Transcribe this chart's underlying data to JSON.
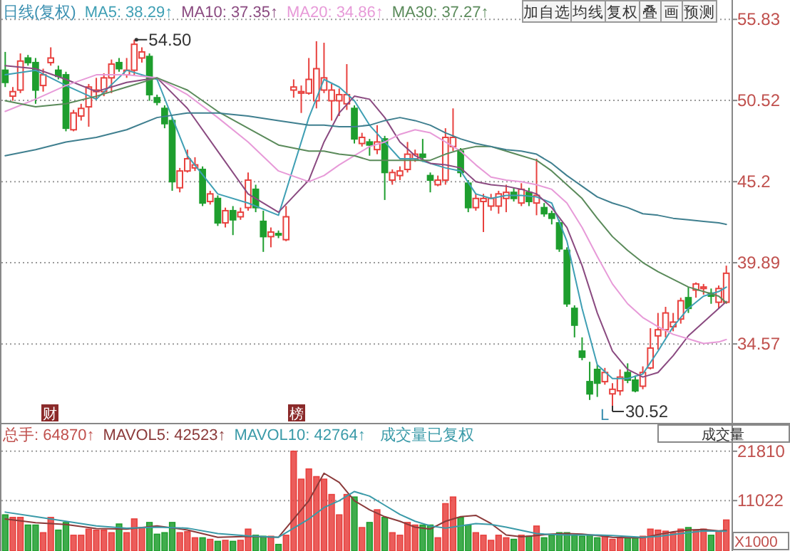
{
  "chart_data": [
    {
      "type": "candlestick",
      "title": "日线(复权)",
      "legend": "top left",
      "grid": "y",
      "ylim": [
        29.4,
        57.1
      ],
      "yticks": [
        55.83,
        50.52,
        45.2,
        39.89,
        34.57
      ],
      "categories": [
        null,
        null,
        null,
        null,
        null,
        null,
        null,
        null,
        null,
        null,
        null,
        null,
        null,
        null,
        null,
        null,
        null,
        null,
        null,
        null,
        null,
        null,
        null,
        null,
        null,
        null,
        null,
        null,
        null,
        null,
        null,
        null,
        null,
        null,
        null,
        null,
        null,
        null,
        null,
        null,
        null,
        null,
        null,
        null,
        null,
        null,
        null,
        null,
        null,
        null,
        null,
        null,
        null,
        null,
        null,
        null,
        null,
        null,
        null,
        null,
        null,
        null,
        null,
        null,
        null,
        null,
        null,
        null,
        null,
        null,
        null,
        null,
        null,
        null,
        null,
        null,
        null,
        null,
        null,
        null,
        null,
        null,
        null,
        null,
        null,
        null,
        null,
        null,
        null,
        null,
        null,
        null,
        null,
        null,
        null,
        null
      ],
      "ohlc": [
        [
          52.5,
          53.7,
          51.4,
          51.7
        ],
        [
          50.8,
          51.4,
          50.5,
          51.1
        ],
        [
          51.2,
          53.6,
          51.0,
          53.1
        ],
        [
          53.3,
          53.5,
          52.8,
          53.0
        ],
        [
          53.0,
          53.3,
          50.3,
          51.2
        ],
        [
          51.5,
          52.6,
          51.1,
          52.2
        ],
        [
          53.0,
          54.0,
          52.8,
          53.3
        ],
        [
          52.5,
          52.8,
          51.9,
          52.1
        ],
        [
          52.2,
          52.4,
          48.5,
          48.7
        ],
        [
          48.6,
          49.9,
          48.5,
          49.7
        ],
        [
          49.5,
          50.3,
          49.2,
          50.0
        ],
        [
          50.1,
          51.6,
          48.8,
          51.4
        ],
        [
          51.1,
          52.0,
          50.6,
          51.2
        ],
        [
          51.1,
          52.3,
          50.8,
          52.0
        ],
        [
          52.0,
          53.2,
          51.0,
          52.9
        ],
        [
          53.0,
          53.3,
          52.4,
          52.6
        ],
        [
          52.2,
          53.3,
          52.0,
          52.5
        ],
        [
          52.5,
          54.5,
          52.2,
          54.2
        ],
        [
          53.3,
          54.0,
          53.0,
          53.7
        ],
        [
          53.4,
          53.6,
          50.5,
          50.9
        ],
        [
          50.7,
          50.9,
          50.2,
          50.4
        ],
        [
          50.0,
          50.2,
          48.7,
          49.0
        ],
        [
          49.2,
          49.4,
          44.6,
          45.2
        ],
        [
          44.8,
          46.1,
          44.5,
          45.9
        ],
        [
          45.9,
          47.3,
          45.8,
          46.7
        ],
        [
          46.1,
          46.8,
          45.9,
          46.3
        ],
        [
          46.0,
          46.2,
          43.6,
          43.8
        ],
        [
          43.9,
          44.6,
          43.7,
          44.4
        ],
        [
          44.1,
          44.3,
          42.3,
          42.5
        ],
        [
          42.5,
          43.5,
          42.2,
          43.3
        ],
        [
          43.3,
          43.6,
          41.7,
          42.7
        ],
        [
          42.9,
          43.5,
          42.7,
          43.2
        ],
        [
          43.5,
          45.8,
          43.3,
          45.3
        ],
        [
          44.7,
          45.0,
          43.2,
          43.5
        ],
        [
          42.6,
          43.3,
          40.6,
          41.6
        ],
        [
          41.6,
          42.2,
          40.9,
          41.9
        ],
        [
          41.8,
          42.0,
          41.5,
          41.7
        ],
        [
          41.4,
          43.6,
          41.3,
          42.9
        ],
        [
          51.2,
          51.9,
          50.7,
          51.4
        ],
        [
          51.0,
          51.5,
          49.7,
          51.1
        ],
        [
          51.0,
          53.3,
          50.9,
          51.9
        ],
        [
          50.5,
          54.4,
          50.0,
          52.6
        ],
        [
          51.2,
          54.3,
          51.0,
          52.0
        ],
        [
          50.5,
          51.6,
          49.2,
          51.2
        ],
        [
          50.5,
          51.3,
          49.5,
          50.9
        ],
        [
          50.3,
          52.9,
          49.9,
          50.9
        ],
        [
          50.0,
          50.2,
          47.7,
          48.0
        ],
        [
          47.7,
          48.4,
          47.5,
          48.1
        ],
        [
          47.8,
          48.0,
          46.9,
          47.6
        ],
        [
          47.3,
          48.9,
          47.0,
          47.8
        ],
        [
          48.0,
          48.2,
          44.0,
          45.8
        ],
        [
          45.3,
          46.0,
          45.0,
          45.8
        ],
        [
          45.6,
          46.2,
          45.3,
          45.9
        ],
        [
          46.0,
          47.8,
          45.8,
          47.0
        ],
        [
          46.7,
          47.3,
          46.5,
          47.0
        ],
        [
          47.0,
          48.0,
          46.5,
          46.8
        ],
        [
          45.6,
          45.8,
          44.5,
          45.3
        ],
        [
          45.0,
          45.6,
          44.9,
          45.3
        ],
        [
          45.3,
          48.7,
          45.0,
          48.1
        ],
        [
          47.5,
          50.0,
          47.2,
          48.1
        ],
        [
          47.2,
          47.4,
          45.5,
          45.8
        ],
        [
          45.1,
          45.3,
          43.2,
          43.5
        ],
        [
          43.5,
          44.4,
          43.3,
          44.1
        ],
        [
          43.9,
          44.4,
          41.9,
          44.1
        ],
        [
          43.6,
          44.4,
          43.3,
          44.1
        ],
        [
          43.6,
          44.6,
          43.1,
          44.4
        ],
        [
          44.1,
          45.0,
          43.2,
          44.5
        ],
        [
          44.5,
          44.8,
          43.9,
          44.1
        ],
        [
          43.8,
          45.1,
          43.6,
          44.7
        ],
        [
          44.5,
          44.8,
          43.6,
          43.9
        ],
        [
          43.8,
          46.7,
          43.0,
          44.3
        ],
        [
          43.5,
          43.8,
          42.9,
          43.1
        ],
        [
          43.1,
          43.3,
          42.4,
          42.8
        ],
        [
          42.5,
          42.7,
          40.6,
          40.8
        ],
        [
          40.7,
          40.9,
          37.0,
          37.2
        ],
        [
          36.9,
          37.1,
          35.0,
          35.8
        ],
        [
          34.1,
          35.0,
          33.5,
          33.7
        ],
        [
          32.1,
          33.4,
          30.9,
          31.3
        ],
        [
          32.9,
          33.2,
          31.1,
          32.0
        ],
        [
          32.1,
          33.0,
          31.9,
          32.7
        ],
        [
          31.3,
          32.0,
          30.52,
          31.6
        ],
        [
          31.5,
          32.9,
          31.2,
          32.4
        ],
        [
          32.7,
          33.3,
          32.0,
          32.2
        ],
        [
          32.2,
          32.5,
          31.4,
          31.5
        ],
        [
          31.8,
          33.1,
          31.6,
          32.7
        ],
        [
          33.0,
          35.6,
          32.9,
          34.3
        ],
        [
          35.1,
          36.6,
          34.2,
          35.5
        ],
        [
          35.5,
          37.0,
          35.0,
          36.6
        ],
        [
          35.7,
          36.6,
          35.4,
          36.0
        ],
        [
          36.2,
          37.6,
          35.9,
          37.4
        ],
        [
          37.6,
          38.3,
          36.6,
          36.9
        ],
        [
          38.1,
          38.6,
          37.6,
          38.5
        ],
        [
          38.2,
          38.5,
          37.8,
          38.3
        ],
        [
          37.9,
          38.2,
          37.2,
          37.7
        ],
        [
          37.3,
          38.4,
          36.9,
          38.2
        ],
        [
          37.3,
          39.7,
          37.2,
          39.2
        ]
      ],
      "colors": [
        "#1e9e2e",
        "#e8413e",
        "#e8413e",
        "#1e9e2e",
        "#1e9e2e",
        "#e8413e",
        "#e8413e",
        "#1e9e2e",
        "#1e9e2e",
        "#e8413e",
        "#e8413e",
        "#e8413e",
        "#e8413e",
        "#e8413e",
        "#e8413e",
        "#1e9e2e",
        "#e8413e",
        "#e8413e",
        "#e8413e",
        "#1e9e2e",
        "#1e9e2e",
        "#1e9e2e",
        "#1e9e2e",
        "#e8413e",
        "#e8413e",
        "#e8413e",
        "#1e9e2e",
        "#e8413e",
        "#1e9e2e",
        "#e8413e",
        "#1e9e2e",
        "#e8413e",
        "#e8413e",
        "#1e9e2e",
        "#1e9e2e",
        "#e8413e",
        "#1e9e2e",
        "#e8413e",
        "#e8413e",
        "#e8413e",
        "#e8413e",
        "#e8413e",
        "#e8413e",
        "#e8413e",
        "#e8413e",
        "#e8413e",
        "#1e9e2e",
        "#e8413e",
        "#1e9e2e",
        "#e8413e",
        "#1e9e2e",
        "#e8413e",
        "#e8413e",
        "#e8413e",
        "#e8413e",
        "#1e9e2e",
        "#1e9e2e",
        "#e8413e",
        "#e8413e",
        "#e8413e",
        "#1e9e2e",
        "#1e9e2e",
        "#e8413e",
        "#e8413e",
        "#e8413e",
        "#e8413e",
        "#e8413e",
        "#1e9e2e",
        "#e8413e",
        "#1e9e2e",
        "#e8413e",
        "#1e9e2e",
        "#1e9e2e",
        "#1e9e2e",
        "#1e9e2e",
        "#1e9e2e",
        "#1e9e2e",
        "#1e9e2e",
        "#1e9e2e",
        "#e8413e",
        "#e8413e",
        "#e8413e",
        "#1e9e2e",
        "#1e9e2e",
        "#e8413e",
        "#e8413e",
        "#e8413e",
        "#e8413e",
        "#e8413e",
        "#e8413e",
        "#1e9e2e",
        "#e8413e",
        "#e8413e",
        "#1e9e2e",
        "#e8413e",
        "#e8413e"
      ],
      "series": [
        {
          "type": "line",
          "name": "MA5: 38.29↑",
          "color": "#3f9fb4",
          "values": [
            52.2,
            null,
            null,
            null,
            52.5,
            null,
            null,
            null,
            51.5,
            null,
            null,
            null,
            50.6,
            null,
            null,
            null,
            52.5,
            null,
            null,
            null,
            51.9,
            null,
            null,
            null,
            46.9,
            null,
            null,
            null,
            44.4,
            null,
            null,
            null,
            43.8,
            null,
            null,
            null,
            43.0,
            null,
            null,
            null,
            49.4,
            null,
            51.9,
            null,
            51.4,
            null,
            50.5,
            null,
            48.9,
            null,
            47.8,
            null,
            46.7,
            null,
            46.7,
            null,
            46.4,
            null,
            46.1,
            null,
            45.9,
            null,
            44.4,
            null,
            44.1,
            null,
            44.3,
            null,
            44.3,
            null,
            44.2,
            null,
            43.8,
            null,
            41.3,
            null,
            36.9,
            null,
            33.2,
            null,
            32.3,
            null,
            32.3,
            null,
            32.6,
            null,
            34.1,
            null,
            35.7,
            null,
            36.9,
            null,
            37.7,
            null,
            38.0,
            38.29
          ]
        },
        {
          "type": "line",
          "name": "MA10: 37.35↑",
          "color": "#8a4a80",
          "values": [
            52.8,
            null,
            null,
            null,
            52.6,
            null,
            null,
            null,
            51.9,
            null,
            null,
            null,
            51.1,
            null,
            null,
            null,
            51.7,
            null,
            null,
            null,
            52.0,
            null,
            null,
            null,
            50.0,
            null,
            null,
            null,
            47.2,
            null,
            null,
            null,
            44.4,
            null,
            null,
            null,
            43.2,
            null,
            null,
            null,
            45.3,
            null,
            47.8,
            null,
            49.7,
            null,
            50.8,
            null,
            50.6,
            null,
            49.4,
            null,
            47.8,
            null,
            46.9,
            null,
            46.4,
            null,
            46.3,
            null,
            46.1,
            null,
            45.2,
            null,
            45.0,
            null,
            44.9,
            null,
            44.7,
            null,
            44.4,
            null,
            43.5,
            null,
            42.2,
            null,
            39.7,
            null,
            36.6,
            null,
            34.1,
            null,
            32.9,
            null,
            32.4,
            null,
            32.7,
            null,
            33.8,
            null,
            35.1,
            null,
            36.0,
            null,
            36.9,
            37.35
          ]
        },
        {
          "type": "line",
          "name": "MA20: 34.86↑",
          "color": "#e79ad8",
          "values": [
            49.8,
            null,
            null,
            null,
            50.6,
            null,
            null,
            null,
            51.5,
            null,
            null,
            null,
            52.2,
            null,
            null,
            null,
            52.2,
            null,
            null,
            null,
            52.0,
            null,
            null,
            null,
            50.9,
            null,
            null,
            null,
            49.4,
            null,
            null,
            null,
            47.8,
            null,
            null,
            null,
            45.9,
            null,
            null,
            null,
            45.2,
            null,
            45.6,
            null,
            46.3,
            null,
            46.9,
            null,
            47.5,
            null,
            47.8,
            null,
            48.3,
            null,
            48.6,
            null,
            48.4,
            null,
            47.8,
            null,
            47.2,
            null,
            46.3,
            null,
            45.5,
            null,
            45.3,
            null,
            45.2,
            null,
            45.0,
            null,
            44.7,
            null,
            43.8,
            null,
            42.2,
            null,
            40.3,
            null,
            38.5,
            null,
            37.2,
            null,
            36.3,
            null,
            35.7,
            null,
            35.2,
            null,
            34.9,
            null,
            34.6,
            null,
            34.7,
            34.86
          ]
        },
        {
          "type": "line",
          "name": "MA30: 37.27↑",
          "color": "#5a8a5a",
          "values": [
            50.5,
            null,
            null,
            null,
            50.1,
            null,
            null,
            null,
            50.3,
            null,
            null,
            null,
            50.8,
            null,
            null,
            null,
            51.4,
            null,
            null,
            null,
            52.0,
            null,
            null,
            null,
            51.2,
            null,
            null,
            null,
            49.8,
            null,
            null,
            null,
            48.7,
            null,
            null,
            null,
            47.6,
            null,
            null,
            null,
            47.2,
            null,
            47.2,
            null,
            47.0,
            null,
            46.9,
            null,
            46.6,
            null,
            46.6,
            null,
            46.6,
            null,
            46.6,
            null,
            46.6,
            null,
            47.0,
            null,
            47.3,
            null,
            47.5,
            null,
            47.5,
            null,
            47.2,
            null,
            46.9,
            null,
            46.6,
            null,
            45.9,
            null,
            45.0,
            null,
            44.1,
            null,
            42.8,
            null,
            41.6,
            null,
            40.7,
            null,
            39.9,
            null,
            39.3,
            null,
            38.8,
            null,
            38.3,
            null,
            38.0,
            null,
            37.7,
            37.27
          ]
        },
        {
          "type": "line",
          "color": "#3f7f8f",
          "values": [
            46.9,
            null,
            null,
            null,
            47.3,
            null,
            null,
            null,
            47.8,
            null,
            null,
            null,
            48.1,
            null,
            null,
            null,
            48.6,
            null,
            null,
            null,
            49.4,
            null,
            null,
            null,
            49.7,
            null,
            null,
            null,
            49.7,
            null,
            null,
            null,
            49.5,
            null,
            null,
            null,
            49.2,
            null,
            null,
            null,
            48.9,
            null,
            48.9,
            null,
            48.8,
            null,
            48.8,
            null,
            48.9,
            null,
            49.2,
            null,
            49.4,
            null,
            49.2,
            null,
            48.9,
            null,
            48.4,
            null,
            48.0,
            null,
            47.7,
            null,
            47.5,
            null,
            47.3,
            null,
            47.2,
            null,
            47.0,
            null,
            46.4,
            null,
            45.6,
            null,
            44.9,
            null,
            44.2,
            null,
            43.8,
            null,
            43.5,
            null,
            43.1,
            null,
            43.0,
            null,
            42.8,
            null,
            42.7,
            null,
            42.6,
            null,
            42.5,
            42.4
          ]
        }
      ],
      "annotations": [
        "54.50",
        "30.52",
        "财",
        "榜",
        "L",
        "加自选",
        "均线",
        "复权",
        "叠",
        "画",
        "预测"
      ]
    },
    {
      "type": "bar",
      "title": "总手: 64870↑",
      "legend": "top left",
      "grid": "y",
      "ylim": [
        0,
        27700
      ],
      "yticks": [
        21810,
        11022
      ],
      "categories": [
        null,
        null,
        null,
        null,
        null,
        null,
        null,
        null,
        null,
        null,
        null,
        null,
        null,
        null,
        null,
        null,
        null,
        null,
        null,
        null,
        null,
        null,
        null,
        null,
        null,
        null,
        null,
        null,
        null,
        null,
        null,
        null,
        null,
        null,
        null,
        null,
        null,
        null,
        null,
        null,
        null,
        null,
        null,
        null,
        null,
        null,
        null,
        null,
        null,
        null,
        null,
        null,
        null,
        null,
        null,
        null,
        null,
        null,
        null,
        null,
        null,
        null,
        null,
        null,
        null,
        null,
        null,
        null,
        null,
        null,
        null,
        null,
        null,
        null,
        null,
        null,
        null,
        null,
        null,
        null,
        null,
        null,
        null,
        null,
        null,
        null,
        null,
        null,
        null,
        null,
        null,
        null,
        null,
        null,
        null,
        null
      ],
      "values": [
        7900,
        7340,
        7340,
        5670,
        5670,
        4000,
        7340,
        4560,
        6230,
        3440,
        3440,
        4780,
        4560,
        4560,
        4000,
        5900,
        4000,
        7010,
        5120,
        6230,
        3670,
        4000,
        6230,
        4000,
        4220,
        2890,
        2890,
        2550,
        2110,
        2330,
        2110,
        2330,
        4780,
        3440,
        3220,
        3220,
        1440,
        3440,
        21810,
        15700,
        17930,
        16260,
        15700,
        12350,
        7900,
        12350,
        11800,
        5120,
        6230,
        9010,
        7340,
        4000,
        3440,
        6230,
        5670,
        5670,
        5670,
        2890,
        10350,
        11800,
        7340,
        5670,
        4000,
        3440,
        2330,
        3440,
        2890,
        2550,
        3440,
        3220,
        5450,
        2890,
        3440,
        4000,
        4000,
        3440,
        3220,
        3440,
        2890,
        3220,
        2550,
        2890,
        2890,
        2890,
        3220,
        4780,
        4560,
        4330,
        4000,
        4780,
        5120,
        4560,
        4780,
        3440,
        4330,
        6780
      ],
      "colors": [
        "#1e9e2e",
        "#e8413e",
        "#e8413e",
        "#1e9e2e",
        "#1e9e2e",
        "#e8413e",
        "#e8413e",
        "#1e9e2e",
        "#1e9e2e",
        "#e8413e",
        "#e8413e",
        "#e8413e",
        "#e8413e",
        "#e8413e",
        "#e8413e",
        "#1e9e2e",
        "#e8413e",
        "#e8413e",
        "#e8413e",
        "#1e9e2e",
        "#1e9e2e",
        "#1e9e2e",
        "#1e9e2e",
        "#e8413e",
        "#e8413e",
        "#e8413e",
        "#1e9e2e",
        "#e8413e",
        "#1e9e2e",
        "#e8413e",
        "#1e9e2e",
        "#e8413e",
        "#e8413e",
        "#1e9e2e",
        "#1e9e2e",
        "#e8413e",
        "#1e9e2e",
        "#e8413e",
        "#e8413e",
        "#e8413e",
        "#e8413e",
        "#e8413e",
        "#e8413e",
        "#e8413e",
        "#e8413e",
        "#e8413e",
        "#1e9e2e",
        "#e8413e",
        "#1e9e2e",
        "#e8413e",
        "#1e9e2e",
        "#e8413e",
        "#e8413e",
        "#e8413e",
        "#e8413e",
        "#1e9e2e",
        "#1e9e2e",
        "#e8413e",
        "#e8413e",
        "#e8413e",
        "#1e9e2e",
        "#1e9e2e",
        "#e8413e",
        "#e8413e",
        "#e8413e",
        "#e8413e",
        "#e8413e",
        "#1e9e2e",
        "#e8413e",
        "#1e9e2e",
        "#e8413e",
        "#1e9e2e",
        "#1e9e2e",
        "#1e9e2e",
        "#1e9e2e",
        "#1e9e2e",
        "#1e9e2e",
        "#1e9e2e",
        "#1e9e2e",
        "#e8413e",
        "#e8413e",
        "#e8413e",
        "#1e9e2e",
        "#1e9e2e",
        "#e8413e",
        "#e8413e",
        "#e8413e",
        "#e8413e",
        "#e8413e",
        "#e8413e",
        "#1e9e2e",
        "#e8413e",
        "#e8413e",
        "#1e9e2e",
        "#e8413e",
        "#e8413e"
      ],
      "series": [
        {
          "type": "line",
          "name": "MAVOL5: 42523↑",
          "color": "#8b3a3a",
          "values": [
            7000,
            null,
            null,
            null,
            6200,
            null,
            null,
            null,
            5800,
            null,
            null,
            null,
            4900,
            null,
            null,
            null,
            4800,
            null,
            null,
            null,
            5500,
            null,
            null,
            null,
            4600,
            null,
            null,
            null,
            3000,
            null,
            null,
            null,
            3200,
            null,
            null,
            null,
            3000,
            null,
            null,
            null,
            11000,
            null,
            17000,
            null,
            15000,
            null,
            11000,
            null,
            9000,
            null,
            7500,
            null,
            6500,
            null,
            5200,
            null,
            4800,
            null,
            6500,
            null,
            7500,
            null,
            7800,
            null,
            6000,
            null,
            3500,
            null,
            3100,
            null,
            3400,
            null,
            3700,
            null,
            3800,
            null,
            3700,
            null,
            3400,
            null,
            3000,
            null,
            2900,
            null,
            2900,
            null,
            3600,
            null,
            4200,
            null,
            4600,
            null,
            4700,
            null,
            4400,
            4500
          ]
        },
        {
          "type": "line",
          "name": "MAVOL10: 42764↑",
          "color": "#3a9aa8",
          "values": [
            8500,
            null,
            null,
            null,
            7500,
            null,
            null,
            null,
            6500,
            null,
            null,
            null,
            5500,
            null,
            null,
            null,
            5000,
            null,
            null,
            null,
            5200,
            null,
            null,
            null,
            5000,
            null,
            null,
            null,
            3800,
            null,
            null,
            null,
            3300,
            null,
            null,
            null,
            3000,
            null,
            null,
            null,
            7000,
            null,
            9500,
            null,
            11000,
            null,
            13000,
            null,
            12000,
            null,
            10000,
            null,
            8000,
            null,
            6500,
            null,
            5500,
            null,
            5000,
            null,
            5500,
            null,
            6000,
            null,
            5800,
            null,
            5200,
            null,
            4500,
            null,
            3800,
            null,
            3600,
            null,
            3500,
            null,
            3500,
            null,
            3500,
            null,
            3400,
            null,
            3200,
            null,
            3000,
            null,
            3200,
            null,
            3600,
            null,
            4000,
            null,
            4400,
            null,
            4300,
            4300
          ]
        }
      ],
      "annotations": [
        "成交量已复权",
        "成交量",
        "X1000"
      ]
    }
  ]
}
